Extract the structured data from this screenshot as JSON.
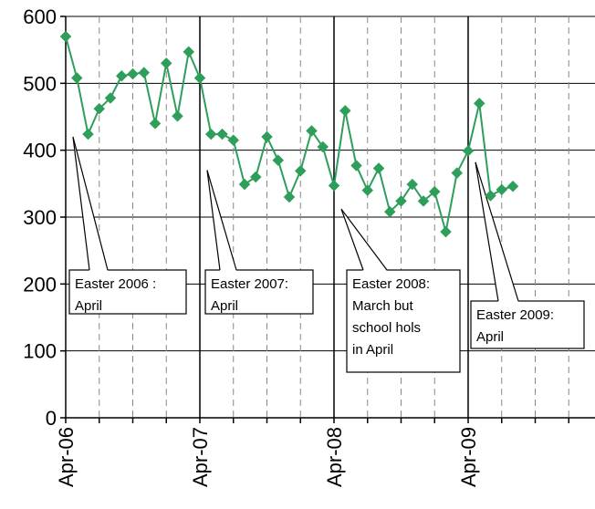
{
  "chart_data": {
    "type": "line",
    "title": "",
    "xlabel": "",
    "ylabel": "",
    "ylim": [
      0,
      600
    ],
    "y_ticks": [
      0,
      100,
      200,
      300,
      400,
      500,
      600
    ],
    "x_tick_labels": [
      "Apr-06",
      "Apr-07",
      "Apr-08",
      "Apr-09"
    ],
    "x_start": "Apr-06",
    "x_end": "Mar-10",
    "grid": {
      "horizontal": true,
      "vertical_minor": "dashed",
      "vertical_major": "solid"
    },
    "marker": "diamond",
    "color": "#2e9e5b",
    "series": [
      {
        "points": [
          {
            "x": "Apr-06",
            "y": 570
          },
          {
            "x": "May-06",
            "y": 508
          },
          {
            "x": "Jun-06",
            "y": 424
          },
          {
            "x": "Jul-06",
            "y": 462
          },
          {
            "x": "Aug-06",
            "y": 478
          },
          {
            "x": "Sep-06",
            "y": 511
          },
          {
            "x": "Oct-06",
            "y": 514
          },
          {
            "x": "Nov-06",
            "y": 516
          },
          {
            "x": "Dec-06",
            "y": 440
          },
          {
            "x": "Jan-07",
            "y": 530
          },
          {
            "x": "Feb-07",
            "y": 451
          },
          {
            "x": "Mar-07",
            "y": 547
          },
          {
            "x": "Apr-07",
            "y": 508
          },
          {
            "x": "May-07",
            "y": 424
          },
          {
            "x": "Jun-07",
            "y": 424
          },
          {
            "x": "Jul-07",
            "y": 415
          },
          {
            "x": "Aug-07",
            "y": 349
          },
          {
            "x": "Sep-07",
            "y": 360
          },
          {
            "x": "Oct-07",
            "y": 420
          },
          {
            "x": "Nov-07",
            "y": 385
          },
          {
            "x": "Dec-07",
            "y": 330
          },
          {
            "x": "Jan-08",
            "y": 369
          },
          {
            "x": "Feb-08",
            "y": 429
          },
          {
            "x": "Mar-08",
            "y": 405
          },
          {
            "x": "Apr-08",
            "y": 347
          },
          {
            "x": "May-08",
            "y": 459
          },
          {
            "x": "Jun-08",
            "y": 377
          },
          {
            "x": "Jul-08",
            "y": 340
          },
          {
            "x": "Aug-08",
            "y": 373
          },
          {
            "x": "Sep-08",
            "y": 308
          },
          {
            "x": "Oct-08",
            "y": 324
          },
          {
            "x": "Nov-08",
            "y": 349
          },
          {
            "x": "Dec-08",
            "y": 324
          },
          {
            "x": "Jan-09",
            "y": 338
          },
          {
            "x": "Feb-09",
            "y": 278
          },
          {
            "x": "Mar-09",
            "y": 366
          },
          {
            "x": "Apr-09",
            "y": 399
          },
          {
            "x": "May-09",
            "y": 470
          },
          {
            "x": "Jun-09",
            "y": 332
          },
          {
            "x": "Jul-09",
            "y": 341
          },
          {
            "x": "Aug-09",
            "y": 346
          }
        ]
      }
    ],
    "annotations": [
      {
        "lines": [
          "Easter 2006 :",
          "April"
        ],
        "target": {
          "x": "Apr-06",
          "y": 420
        }
      },
      {
        "lines": [
          "Easter 2007:",
          "April"
        ],
        "target": {
          "x": "Apr-07",
          "y": 370
        }
      },
      {
        "lines": [
          "Easter 2008:",
          "March but",
          "school hols",
          "in April"
        ],
        "target": {
          "x": "Apr-08",
          "y": 312
        }
      },
      {
        "lines": [
          "Easter 2009:",
          "April"
        ],
        "target": {
          "x": "Apr-09",
          "y": 382
        }
      }
    ]
  }
}
